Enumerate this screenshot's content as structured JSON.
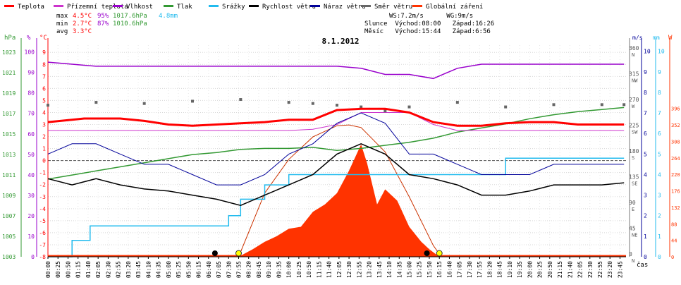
{
  "chart_data": {
    "type": "line",
    "title": "8.1.2012",
    "xlabel": "čas",
    "legend": [
      {
        "label": "Teplota",
        "color": "#ff0000"
      },
      {
        "label": "Přízemní teplota",
        "color": "#cc33cc"
      },
      {
        "label": "Vlhkost",
        "color": "#9900cc"
      },
      {
        "label": "Tlak",
        "color": "#339933"
      },
      {
        "label": "Srážky",
        "color": "#22bbee"
      },
      {
        "label": "Rychlost větru",
        "color": "#000000"
      },
      {
        "label": "Náraz větru",
        "color": "#000099"
      },
      {
        "label": "Směr větru",
        "color": "#666666"
      },
      {
        "label": "Globální záření",
        "color": "#ff3300"
      }
    ],
    "stats": {
      "max_label": "max",
      "min_label": "min",
      "avg_label": "avg",
      "max": {
        "temp": "4.5°C",
        "hum": "95%",
        "press": "1017.6hPa",
        "rain": "4.8mm"
      },
      "min": {
        "temp": "2.7°C",
        "hum": "87%",
        "press": "1010.6hPa"
      },
      "avg": {
        "temp": "3.3°C"
      }
    },
    "info": {
      "line1": "WS:7.2m/s      WG:9m/s",
      "line2": "Slunce  Východ:08:00   Západ:16:26",
      "line3": "Měsíc   Východ:15:44   Západ:6:56"
    },
    "axes": {
      "hpa_title": "hPa",
      "hpa_ticks": [
        "1003",
        "1005",
        "1007",
        "1009",
        "1011",
        "1013",
        "1015",
        "1017",
        "1019",
        "1021",
        "1023"
      ],
      "hum_title": "%",
      "hum_ticks": [
        "0",
        "10",
        "20",
        "30",
        "40",
        "50",
        "60",
        "70",
        "80",
        "90",
        "100"
      ],
      "temp_title": "°C",
      "temp_ticks": [
        "-8",
        "-7",
        "-6",
        "-5",
        "-4",
        "-3",
        "-2",
        "-1",
        "0",
        "1",
        "2",
        "3",
        "4",
        "5",
        "6",
        "7",
        "8",
        "9"
      ],
      "dir_ticks": [
        "0",
        "45",
        "90",
        "135",
        "180",
        "225",
        "270",
        "315",
        "360"
      ],
      "dir_labels": [
        "N",
        "NE",
        "E",
        "SE",
        "S",
        "SW",
        "W",
        "NW",
        "N"
      ],
      "ms_title": "m/s",
      "ms_ticks": [
        "0",
        "1",
        "2",
        "3",
        "4",
        "5",
        "6",
        "7",
        "8",
        "9",
        "10"
      ],
      "mm_title": "mm",
      "mm_ticks": [
        "0",
        "1",
        "2",
        "3",
        "4",
        "5",
        "6",
        "7",
        "8",
        "9",
        "10"
      ],
      "w_title": "W",
      "w_ticks": [
        "0",
        "44",
        "88",
        "132",
        "176",
        "220",
        "264",
        "308",
        "352",
        "396"
      ],
      "time_ticks": [
        "00:00",
        "00:25",
        "00:50",
        "01:15",
        "01:40",
        "02:05",
        "02:30",
        "02:55",
        "03:20",
        "03:45",
        "04:10",
        "04:35",
        "05:00",
        "05:25",
        "05:50",
        "06:15",
        "06:40",
        "07:05",
        "07:30",
        "07:55",
        "08:20",
        "08:45",
        "09:10",
        "09:35",
        "10:00",
        "10:25",
        "10:50",
        "11:15",
        "11:40",
        "12:05",
        "12:30",
        "12:55",
        "13:20",
        "13:45",
        "14:10",
        "14:35",
        "15:00",
        "15:25",
        "15:50",
        "16:15",
        "16:40",
        "17:05",
        "17:30",
        "17:55",
        "18:20",
        "18:45",
        "19:10",
        "19:35",
        "20:00",
        "20:25",
        "20:50",
        "21:15",
        "21:40",
        "22:05",
        "22:30",
        "22:55",
        "23:20",
        "23:45"
      ]
    },
    "series": {
      "temperature_c": {
        "x": [
          "00:00",
          "01:00",
          "01:30",
          "02:00",
          "03:00",
          "04:00",
          "05:00",
          "06:00",
          "07:00",
          "08:00",
          "09:00",
          "10:00",
          "11:00",
          "12:00",
          "13:00",
          "14:00",
          "15:00",
          "16:00",
          "17:00",
          "18:00",
          "19:00",
          "20:00",
          "21:00",
          "22:00",
          "23:00",
          "23:55"
        ],
        "y": [
          3.2,
          3.4,
          3.5,
          3.5,
          3.5,
          3.3,
          3.0,
          2.9,
          3.0,
          3.1,
          3.2,
          3.4,
          3.4,
          4.2,
          4.3,
          4.3,
          4.0,
          3.2,
          2.9,
          2.9,
          3.1,
          3.2,
          3.2,
          3.0,
          3.0,
          3.0
        ]
      },
      "ground_temp_c": {
        "x": [
          "00:00",
          "01:00",
          "02:00",
          "03:00",
          "04:00",
          "05:00",
          "06:00",
          "07:00",
          "08:00",
          "09:00",
          "10:00",
          "11:00",
          "12:00",
          "13:00",
          "14:00",
          "15:00",
          "16:00",
          "17:00",
          "18:00",
          "19:00",
          "20:00",
          "21:00",
          "22:00",
          "23:00",
          "23:55"
        ],
        "y": [
          2.5,
          2.5,
          2.5,
          2.5,
          2.5,
          2.5,
          2.5,
          2.5,
          2.5,
          2.5,
          2.5,
          2.6,
          3.0,
          4.0,
          4.0,
          4.0,
          3.0,
          2.5,
          2.5,
          2.5,
          2.5,
          2.5,
          2.5,
          2.5,
          2.5
        ]
      },
      "humidity_pct": {
        "x": [
          "00:00",
          "01:00",
          "02:00",
          "03:00",
          "04:00",
          "05:00",
          "06:00",
          "07:00",
          "08:00",
          "09:00",
          "10:00",
          "11:00",
          "12:00",
          "13:00",
          "14:00",
          "15:00",
          "16:00",
          "17:00",
          "18:00",
          "19:00",
          "20:00",
          "21:00",
          "22:00",
          "23:00",
          "23:55"
        ],
        "y": [
          95,
          94,
          93,
          93,
          93,
          93,
          93,
          93,
          93,
          93,
          93,
          93,
          93,
          92,
          89,
          89,
          87,
          92,
          94,
          94,
          94,
          94,
          94,
          94,
          94
        ]
      },
      "pressure_hpa": {
        "x": [
          "00:00",
          "01:00",
          "02:00",
          "03:00",
          "04:00",
          "05:00",
          "06:00",
          "07:00",
          "08:00",
          "09:00",
          "10:00",
          "11:00",
          "12:00",
          "13:00",
          "14:00",
          "15:00",
          "16:00",
          "17:00",
          "18:00",
          "19:00",
          "20:00",
          "21:00",
          "22:00",
          "23:00",
          "23:55"
        ],
        "y": [
          1010.6,
          1011.0,
          1011.4,
          1011.8,
          1012.2,
          1012.6,
          1013.0,
          1013.2,
          1013.5,
          1013.6,
          1013.6,
          1013.7,
          1013.4,
          1013.6,
          1013.9,
          1014.2,
          1014.6,
          1015.2,
          1015.6,
          1016.0,
          1016.5,
          1016.9,
          1017.2,
          1017.4,
          1017.6
        ]
      },
      "rain_mm": {
        "x": [
          "00:00",
          "01:00",
          "01:45",
          "05:00",
          "07:30",
          "08:00",
          "09:00",
          "10:00",
          "11:00",
          "12:00",
          "15:00",
          "17:00",
          "18:00",
          "19:00",
          "21:00",
          "23:55"
        ],
        "y": [
          0.0,
          0.8,
          1.5,
          1.5,
          2.0,
          2.8,
          3.5,
          4.0,
          4.0,
          4.0,
          4.0,
          4.0,
          4.0,
          4.8,
          4.8,
          4.8
        ]
      },
      "wind_speed_ms": {
        "x": [
          "00:00",
          "01:00",
          "02:00",
          "03:00",
          "04:00",
          "05:00",
          "06:00",
          "07:00",
          "08:00",
          "09:00",
          "10:00",
          "11:00",
          "12:00",
          "13:00",
          "14:00",
          "15:00",
          "16:00",
          "17:00",
          "18:00",
          "19:00",
          "20:00",
          "21:00",
          "22:00",
          "23:00",
          "23:55"
        ],
        "y": [
          3.8,
          3.5,
          3.8,
          3.5,
          3.3,
          3.2,
          3.0,
          2.8,
          2.5,
          3.0,
          3.5,
          4.0,
          5.0,
          5.5,
          5.0,
          4.0,
          3.8,
          3.5,
          3.0,
          3.0,
          3.2,
          3.5,
          3.5,
          3.5,
          3.6
        ]
      },
      "wind_gust_ms": {
        "x": [
          "00:00",
          "01:00",
          "02:00",
          "03:00",
          "04:00",
          "05:00",
          "06:00",
          "07:00",
          "08:00",
          "09:00",
          "10:00",
          "11:00",
          "12:00",
          "13:00",
          "14:00",
          "15:00",
          "16:00",
          "17:00",
          "18:00",
          "19:00",
          "20:00",
          "21:00",
          "22:00",
          "23:00",
          "23:55"
        ],
        "y": [
          5.0,
          5.5,
          5.5,
          5.0,
          4.5,
          4.5,
          4.0,
          3.5,
          3.5,
          4.0,
          5.0,
          5.5,
          6.5,
          7.0,
          6.5,
          5.0,
          5.0,
          4.5,
          4.0,
          4.0,
          4.0,
          4.5,
          4.5,
          4.5,
          4.5
        ]
      },
      "wind_direction_deg": {
        "x": [
          "00:00",
          "02:00",
          "04:00",
          "06:00",
          "08:00",
          "10:00",
          "11:00",
          "12:00",
          "13:00",
          "14:00",
          "15:00",
          "17:00",
          "19:00",
          "21:00",
          "23:00",
          "23:55"
        ],
        "y": [
          265,
          270,
          268,
          272,
          275,
          270,
          268,
          265,
          262,
          255,
          262,
          270,
          262,
          266,
          266,
          266
        ]
      },
      "global_radiation_wm2": {
        "x": [
          "07:55",
          "08:30",
          "09:00",
          "09:30",
          "10:00",
          "10:30",
          "11:00",
          "11:30",
          "12:00",
          "12:30",
          "13:00",
          "13:15",
          "13:40",
          "14:00",
          "14:30",
          "15:00",
          "15:30",
          "15:50",
          "16:15"
        ],
        "y": [
          0,
          20,
          40,
          55,
          75,
          80,
          120,
          140,
          170,
          230,
          300,
          250,
          140,
          180,
          150,
          80,
          40,
          20,
          0
        ]
      },
      "theoretical_radiation_wm2": {
        "x": [
          "07:55",
          "09:00",
          "10:00",
          "11:00",
          "12:00",
          "12:30",
          "13:00",
          "14:00",
          "15:00",
          "16:00",
          "16:20"
        ],
        "y": [
          0,
          170,
          260,
          320,
          350,
          352,
          345,
          280,
          160,
          30,
          0
        ]
      }
    },
    "sunrise_sunset_markers": [
      "07:55",
      "16:15"
    ],
    "moon_markers": [
      "06:56",
      "15:44"
    ],
    "grid": true
  }
}
